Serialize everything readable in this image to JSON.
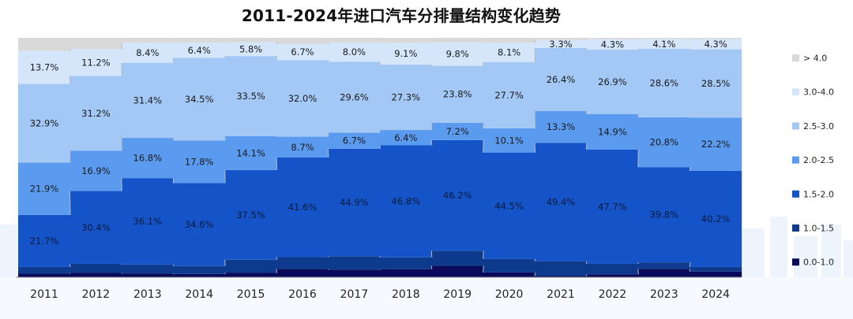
{
  "chart_data": {
    "type": "bar",
    "stacked": true,
    "normalized": true,
    "title": "2011-2024年进口汽车分排量结构变化趋势",
    "categories": [
      "2011",
      "2012",
      "2013",
      "2014",
      "2015",
      "2016",
      "2017",
      "2018",
      "2019",
      "2020",
      "2021",
      "2022",
      "2023",
      "2024"
    ],
    "series": [
      {
        "name": "0.0-1.0",
        "color": "#0a0a5c",
        "values": [
          1.5,
          1.8,
          1.6,
          1.4,
          1.8,
          3.5,
          3.2,
          3.4,
          4.8,
          2.0,
          0.5,
          1.2,
          3.5,
          2.4
        ]
      },
      {
        "name": "1.0-1.5",
        "color": "#0d3a8c",
        "values": [
          2.8,
          3.8,
          3.7,
          3.3,
          5.5,
          4.9,
          5.6,
          4.9,
          6.3,
          5.6,
          6.2,
          4.4,
          2.7,
          1.9
        ]
      },
      {
        "name": "1.5-2.0",
        "color": "#1454c8",
        "values": [
          21.7,
          30.4,
          36.1,
          34.6,
          37.5,
          41.6,
          44.9,
          46.8,
          46.2,
          44.5,
          49.4,
          47.7,
          39.8,
          40.2
        ]
      },
      {
        "name": "2.0-2.5",
        "color": "#5b9bef",
        "values": [
          21.9,
          16.9,
          16.8,
          17.8,
          14.1,
          8.7,
          6.7,
          6.4,
          7.2,
          10.1,
          13.3,
          14.9,
          20.8,
          22.2
        ]
      },
      {
        "name": "2.5-3.0",
        "color": "#a4c8f5",
        "values": [
          32.9,
          31.2,
          31.4,
          34.5,
          33.5,
          32.0,
          29.6,
          27.3,
          23.8,
          27.7,
          26.4,
          26.9,
          28.6,
          28.5
        ]
      },
      {
        "name": "3.0-4.0",
        "color": "#d6e6fa",
        "values": [
          13.7,
          11.2,
          8.4,
          6.4,
          5.8,
          6.7,
          8.0,
          9.1,
          9.8,
          8.1,
          3.3,
          4.3,
          4.1,
          4.3
        ]
      },
      {
        "name": "> 4.0",
        "color": "#d9d9d9",
        "values": [
          5.5,
          4.7,
          2.0,
          2.0,
          1.8,
          2.6,
          2.0,
          2.1,
          1.9,
          2.0,
          0.9,
          0.6,
          0.5,
          0.5
        ]
      }
    ],
    "labeled_series": [
      "1.5-2.0",
      "2.0-2.5",
      "2.5-3.0",
      "3.0-4.0"
    ],
    "ylim": [
      0,
      100
    ],
    "legend_position": "right",
    "grid": false
  }
}
